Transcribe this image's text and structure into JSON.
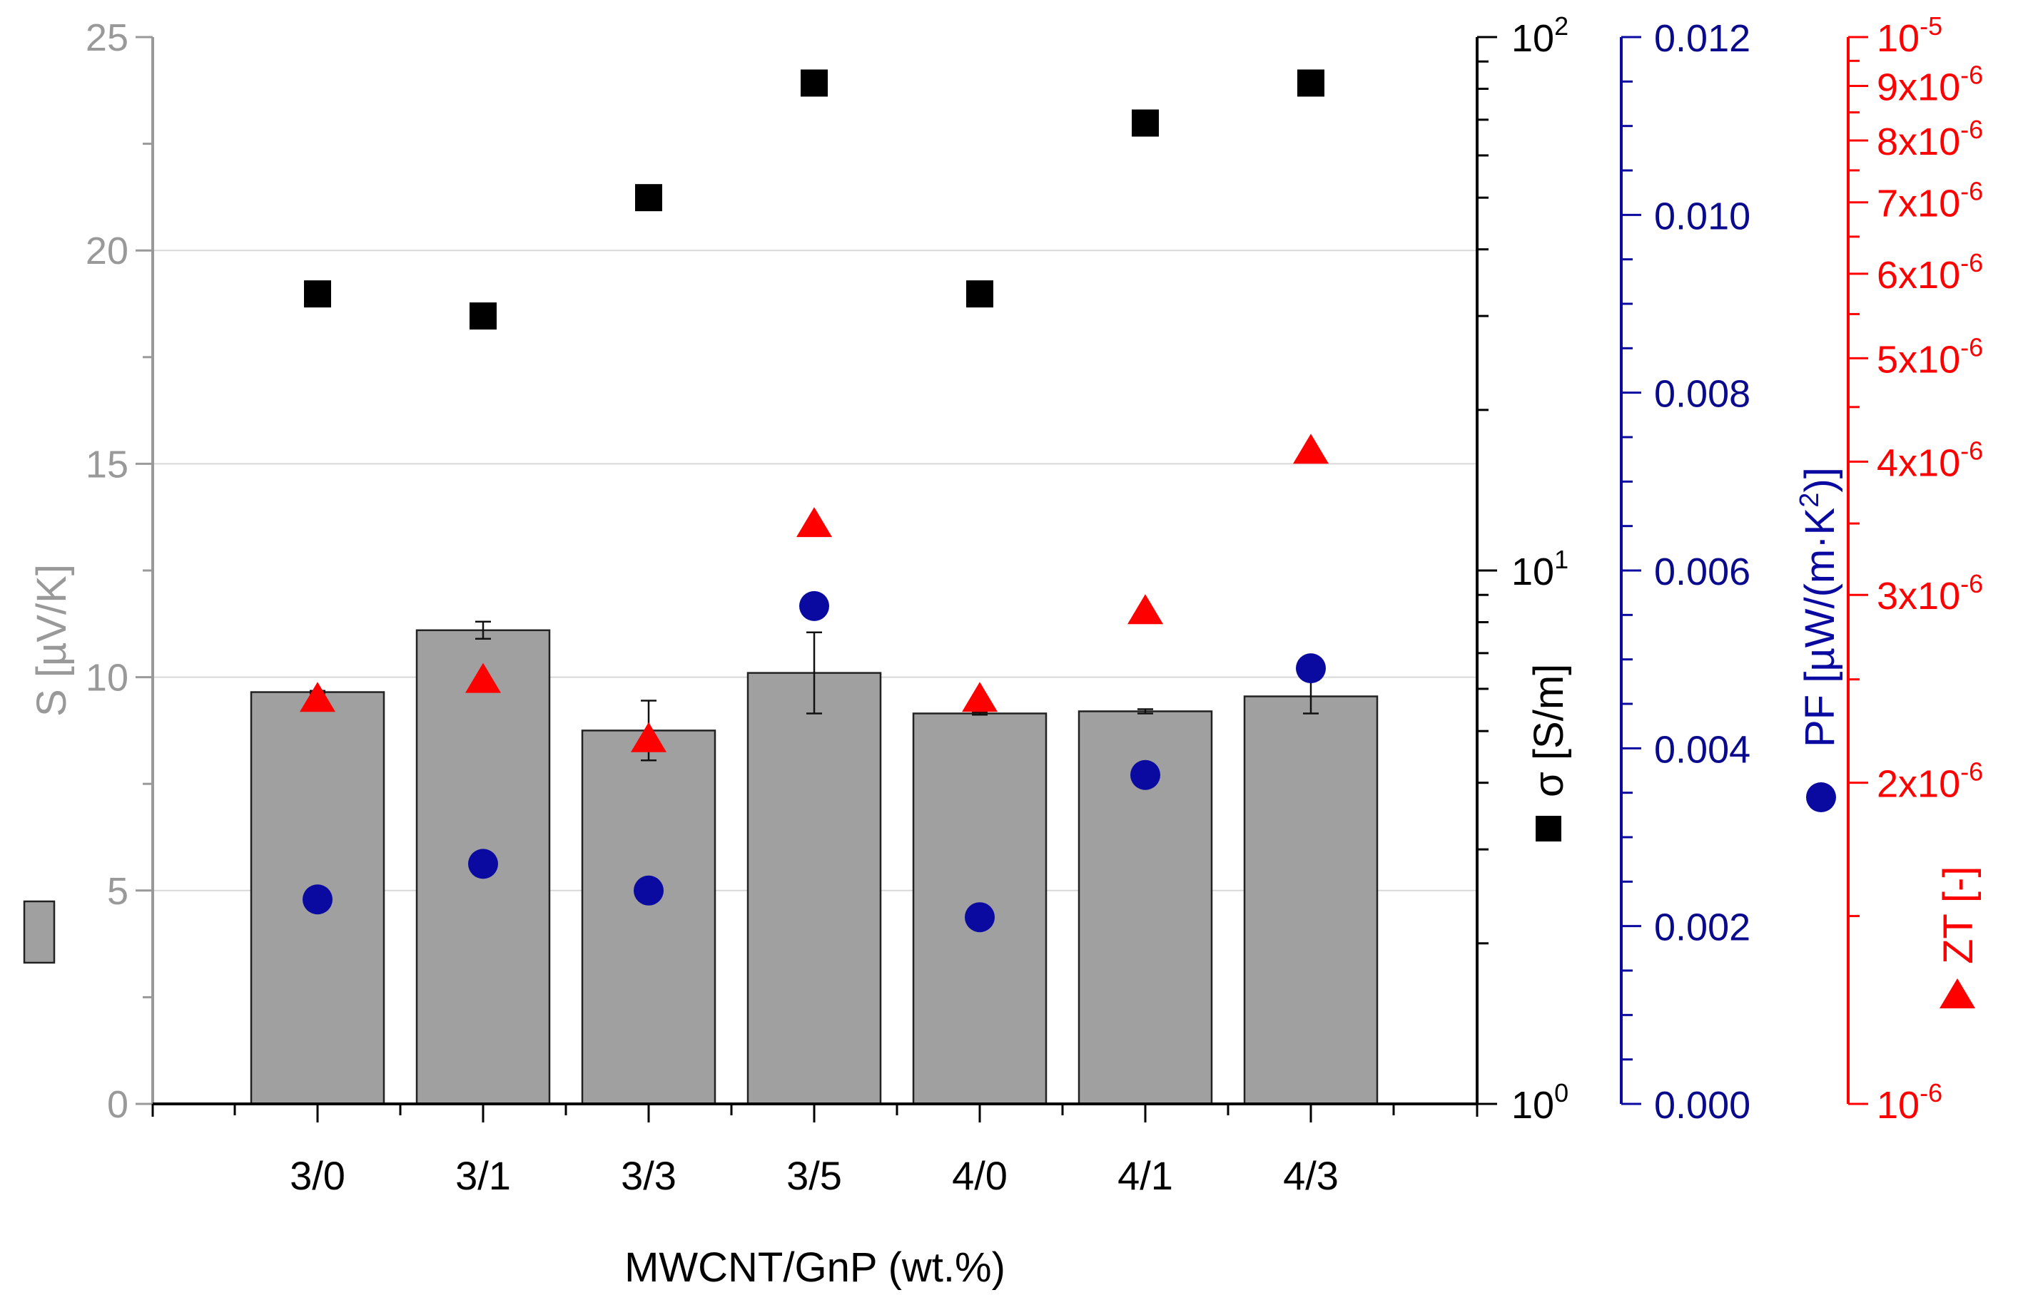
{
  "chart_data": {
    "type": "bar",
    "xlabel": "MWCNT/GnP (wt.%)",
    "categories": [
      "3/0",
      "3/1",
      "3/3",
      "3/5",
      "4/0",
      "4/1",
      "4/3"
    ],
    "series": [
      {
        "name": "S",
        "axis_label": "S [µV/K]",
        "kind": "bar",
        "values": [
          9.65,
          11.1,
          8.75,
          10.1,
          9.15,
          9.2,
          9.55
        ],
        "errors": [
          0.03,
          0.2,
          0.7,
          0.95,
          0.03,
          0.05,
          0.4
        ],
        "ylim": [
          0,
          25
        ],
        "ticks": [
          "0",
          "5",
          "10",
          "15",
          "20",
          "25"
        ],
        "color": "#a0a0a0"
      },
      {
        "name": "σ",
        "axis_label": "σ [S/m]",
        "kind": "square",
        "scale": "log",
        "values": [
          33,
          30,
          50,
          82,
          33,
          69,
          82
        ],
        "ylim": [
          1,
          100
        ],
        "ticks": [
          "10^0",
          "10^1",
          "10^2"
        ],
        "color": "#000000"
      },
      {
        "name": "PF",
        "axis_label": "PF [µW/(m·K²)]",
        "kind": "circle",
        "values": [
          0.0023,
          0.0027,
          0.0024,
          0.0056,
          0.0021,
          0.0037,
          0.0049
        ],
        "ylim": [
          0,
          0.012
        ],
        "ticks": [
          "0.000",
          "0.002",
          "0.004",
          "0.006",
          "0.008",
          "0.010",
          "0.012"
        ],
        "color": "#0a0aa0"
      },
      {
        "name": "ZT",
        "axis_label": "ZT [-]",
        "kind": "triangle",
        "scale": "log",
        "values": [
          2.4e-06,
          2.5e-06,
          2.2e-06,
          3.5e-06,
          2.4e-06,
          2.9e-06,
          4.1e-06
        ],
        "ylim": [
          1e-06,
          1e-05
        ],
        "ticks": [
          "10^-6",
          "2x10^-6",
          "3x10^-6",
          "4x10^-6",
          "5x10^-6",
          "6x10^-6",
          "7x10^-6",
          "8x10^-6",
          "9x10^-6",
          "10^-5"
        ],
        "color": "#ff0000"
      }
    ]
  }
}
